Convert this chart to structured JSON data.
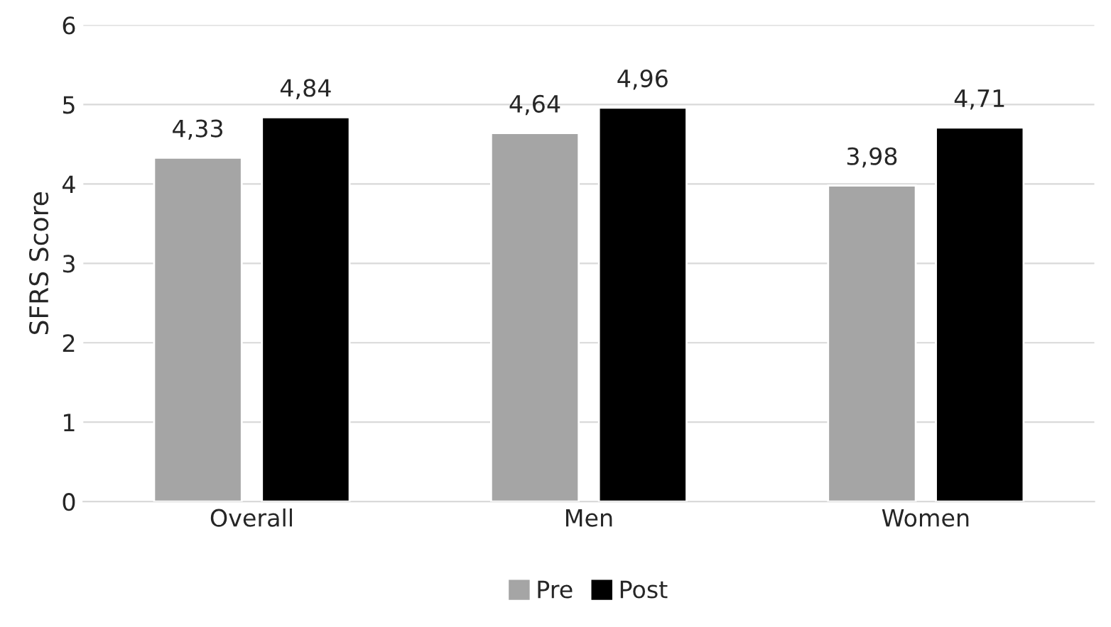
{
  "chart_data": {
    "type": "bar",
    "ylabel": "SFRS Score",
    "categories": [
      "Overall",
      "Men",
      "Women"
    ],
    "series": [
      {
        "name": "Pre",
        "color": "#a5a5a5",
        "values": [
          4.33,
          4.64,
          3.98
        ],
        "value_labels": [
          "4,33",
          "4,64",
          "3,98"
        ]
      },
      {
        "name": "Post",
        "color": "#000000",
        "values": [
          4.84,
          4.96,
          4.71
        ],
        "value_labels": [
          "4,84",
          "4,96",
          "4,71"
        ]
      }
    ],
    "ylim": [
      0,
      6
    ],
    "yticks": [
      0,
      1,
      2,
      3,
      4,
      5,
      6
    ],
    "grid": "y",
    "legend": "bottom"
  }
}
